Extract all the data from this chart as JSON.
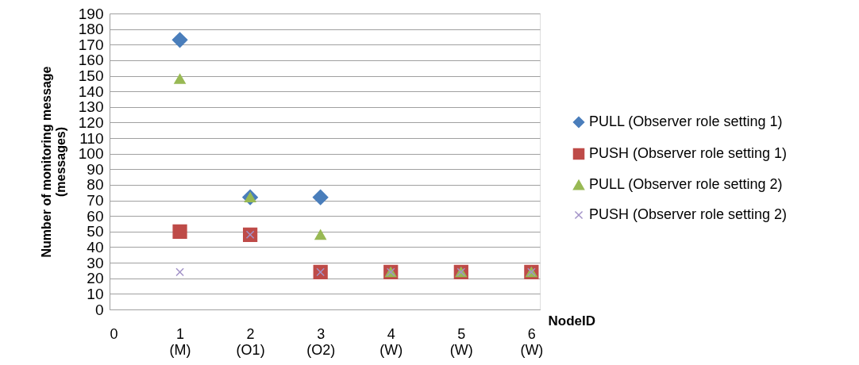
{
  "chart_data": {
    "type": "scatter",
    "ylabel": "Number of monitoring message\n(messages)",
    "xlabel": "NodeID",
    "x": [
      1,
      2,
      3,
      4,
      5,
      6
    ],
    "series": [
      {
        "name": "PULL (Observer role setting 1)",
        "color": "#4a7ebb",
        "marker": "diamond",
        "values": [
          173,
          72,
          72,
          null,
          null,
          null
        ]
      },
      {
        "name": "PUSH (Observer role setting 1)",
        "color": "#be4b48",
        "marker": "square",
        "values": [
          50,
          48,
          24,
          24,
          24,
          24
        ]
      },
      {
        "name": "PULL (Observer role setting 2)",
        "color": "#98b954",
        "marker": "triangle",
        "values": [
          148,
          72,
          48,
          24,
          24,
          24
        ]
      },
      {
        "name": "PUSH (Observer role setting 2)",
        "color": "#a393c8",
        "marker": "cross",
        "values": [
          24,
          48,
          24,
          24,
          24,
          24
        ]
      }
    ],
    "xlim": [
      0,
      6.12
    ],
    "xticks": [
      0,
      {
        "value": 1,
        "label": "1\n(M)"
      },
      {
        "value": 2,
        "label": "2\n(O1)"
      },
      {
        "value": 3,
        "label": "3\n(O2)"
      },
      {
        "value": 4,
        "label": "4\n(W)"
      },
      {
        "value": 5,
        "label": "5\n(W)"
      },
      {
        "value": 6,
        "label": "6\n(W)"
      }
    ],
    "ylim": [
      0,
      190
    ],
    "yticks": [
      0,
      10,
      20,
      30,
      40,
      50,
      60,
      70,
      80,
      90,
      100,
      110,
      120,
      130,
      140,
      150,
      160,
      170,
      180,
      190
    ],
    "grid": "y",
    "legend": "right"
  }
}
